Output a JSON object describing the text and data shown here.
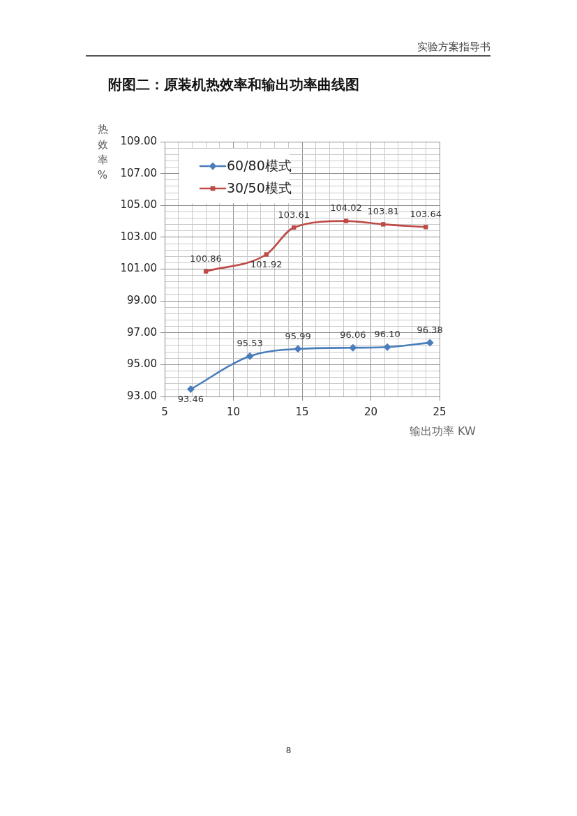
{
  "chart_data": {
    "type": "line",
    "title": "附图二：原装机热效率和输出功率曲线图",
    "xlabel": "输出功率 KW",
    "ylabel": "热效率%",
    "annotations": [
      "实验方案指导书",
      "8"
    ],
    "series": [
      {
        "name": "60/80模式",
        "color": "#4a7ebb",
        "marker": "diamond",
        "x": [
          6.9,
          11.2,
          14.7,
          18.7,
          21.2,
          24.3
        ],
        "values": [
          93.46,
          95.53,
          95.99,
          96.06,
          96.1,
          96.38
        ],
        "value_labels": [
          "93.46",
          "95.53",
          "95.99",
          "96.06",
          "96.10",
          "96.38"
        ]
      },
      {
        "name": "30/50模式",
        "color": "#be4b48",
        "marker": "square",
        "x": [
          8.0,
          12.4,
          14.4,
          18.2,
          20.9,
          24.0
        ],
        "values": [
          100.86,
          101.92,
          103.61,
          104.02,
          103.81,
          103.64
        ],
        "value_labels": [
          "100.86",
          "101.92",
          "103.61",
          "104.02",
          "103.81",
          "103.64"
        ]
      }
    ],
    "xlim": [
      5,
      25
    ],
    "xticks": [
      5,
      {
        "value": 6,
        "label": null
      },
      {
        "value": 7,
        "label": null
      },
      {
        "value": 8,
        "label": null
      },
      {
        "value": 9,
        "label": null
      },
      10,
      {
        "value": 11,
        "label": null
      },
      {
        "value": 12,
        "label": null
      },
      {
        "value": 13,
        "label": null
      },
      {
        "value": 14,
        "label": null
      },
      15,
      {
        "value": 16,
        "label": null
      },
      {
        "value": 17,
        "label": null
      },
      {
        "value": 18,
        "label": null
      },
      {
        "value": 19,
        "label": null
      },
      20,
      {
        "value": 21,
        "label": null
      },
      {
        "value": 22,
        "label": null
      },
      {
        "value": 23,
        "label": null
      },
      {
        "value": 24,
        "label": null
      },
      25
    ],
    "ylim": [
      93,
      109
    ],
    "yticks": [
      {
        "value": 93,
        "label": "93.00"
      },
      {
        "value": 93.4,
        "label": null
      },
      {
        "value": 93.8,
        "label": null
      },
      {
        "value": 94.2,
        "label": null
      },
      {
        "value": 94.6,
        "label": null
      },
      {
        "value": 95,
        "label": "95.00"
      },
      {
        "value": 95.4,
        "label": null
      },
      {
        "value": 95.8,
        "label": null
      },
      {
        "value": 96.2,
        "label": null
      },
      {
        "value": 96.6,
        "label": null
      },
      {
        "value": 97,
        "label": "97.00"
      },
      {
        "value": 97.4,
        "label": null
      },
      {
        "value": 97.8,
        "label": null
      },
      {
        "value": 98.2,
        "label": null
      },
      {
        "value": 98.6,
        "label": null
      },
      {
        "value": 99,
        "label": "99.00"
      },
      {
        "value": 99.4,
        "label": null
      },
      {
        "value": 99.8,
        "label": null
      },
      {
        "value": 100.2,
        "label": null
      },
      {
        "value": 100.6,
        "label": null
      },
      {
        "value": 101,
        "label": "101.00"
      },
      {
        "value": 101.4,
        "label": null
      },
      {
        "value": 101.8,
        "label": null
      },
      {
        "value": 102.2,
        "label": null
      },
      {
        "value": 102.6,
        "label": null
      },
      {
        "value": 103,
        "label": "103.00"
      },
      {
        "value": 103.4,
        "label": null
      },
      {
        "value": 103.8,
        "label": null
      },
      {
        "value": 104.2,
        "label": null
      },
      {
        "value": 104.6,
        "label": null
      },
      {
        "value": 105,
        "label": "105.00"
      },
      {
        "value": 105.4,
        "label": null
      },
      {
        "value": 105.8,
        "label": null
      },
      {
        "value": 106.2,
        "label": null
      },
      {
        "value": 106.6,
        "label": null
      },
      {
        "value": 107,
        "label": "107.00"
      },
      {
        "value": 107.4,
        "label": null
      },
      {
        "value": 107.8,
        "label": null
      },
      {
        "value": 108.2,
        "label": null
      },
      {
        "value": 108.6,
        "label": null
      },
      {
        "value": 109,
        "label": "109.00"
      }
    ],
    "grid": true,
    "legend": "top left",
    "line_style": "solid"
  }
}
